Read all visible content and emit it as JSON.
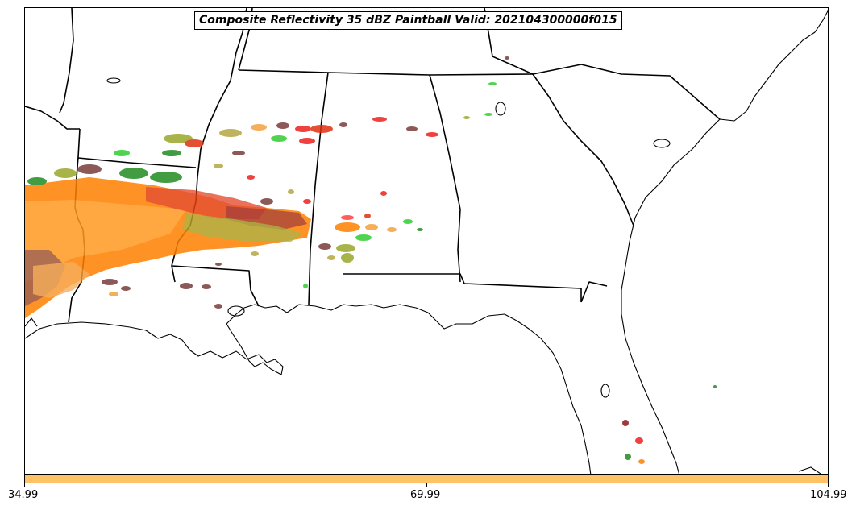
{
  "title": "Composite Reflectivity 35 dBZ Paintball Valid: 202104300000f015",
  "colorbar": {
    "color": "#ffc266",
    "ticks": [
      "34.99",
      "69.99",
      "104.99"
    ]
  },
  "paintball_colors": [
    "#ff7f00",
    "#ff8c00",
    "#e03010",
    "#ee2020",
    "#8b1a1a",
    "#7a3b3b",
    "#228b22",
    "#32cd32",
    "#9aa82a",
    "#b5a642",
    "#f4a040",
    "#ff4040"
  ],
  "map": {
    "borders_color": "#000000",
    "background": "#ffffff"
  }
}
